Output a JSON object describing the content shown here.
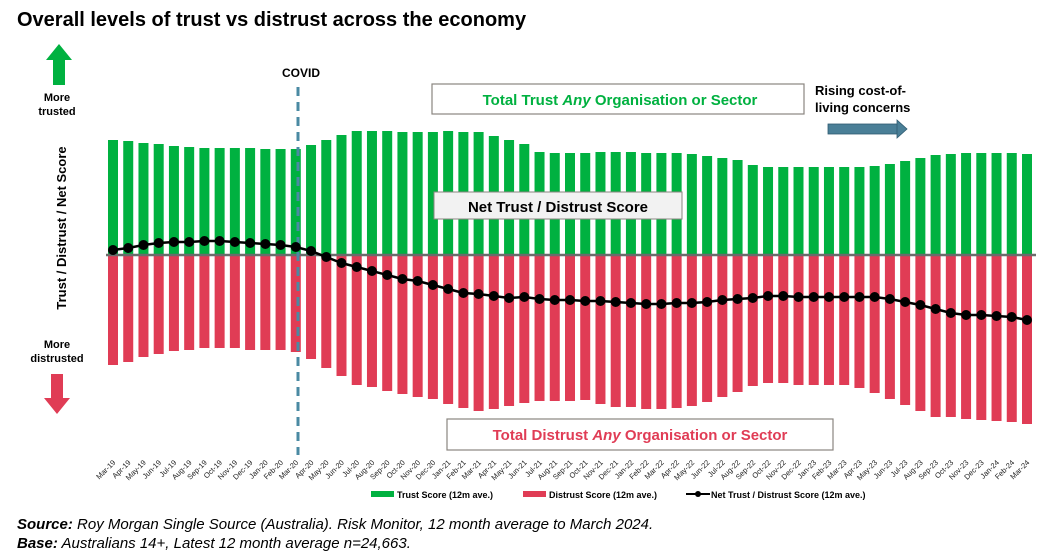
{
  "title": "Overall levels of trust vs distrust across the economy",
  "annotations": {
    "covid": "COVID",
    "more_trusted": [
      "More",
      "trusted"
    ],
    "more_distrusted": [
      "More",
      "distrusted"
    ],
    "trust_box": {
      "pre": "Total Trust ",
      "em": "Any",
      "post": " Organisation or Sector"
    },
    "distrust_box": {
      "pre": "Total Distrust ",
      "em": "Any",
      "post": " Organisation or Sector"
    },
    "net_box": "Net Trust / Distrust Score",
    "cost_of_living": [
      "Rising cost-of-",
      "living concerns"
    ]
  },
  "colors": {
    "trust": "#00b140",
    "distrust": "#e03c55",
    "net": "#000000",
    "covid_line": "#4a8aa3",
    "cost_arrow": "#4a7f97",
    "baseline": "#6b6b6b"
  },
  "footer": {
    "source_label": "Source:",
    "source_text": " Roy Morgan Single Source (Australia). Risk Monitor, 12 month average to March 2024.",
    "base_label": "Base:",
    "base_text": " Australians 14+, Latest 12 month average n=24,663."
  },
  "chart_data": {
    "type": "bar",
    "title": "Overall levels of trust vs distrust across the economy",
    "ylabel": "Trust / Distrust / Net Score",
    "xlabel": "",
    "ylim": [
      -90,
      65
    ],
    "grid": false,
    "legend_position": "bottom",
    "categories": [
      "Mar-19",
      "Apr-19",
      "May-19",
      "Jun-19",
      "Jul-19",
      "Aug-19",
      "Sep-19",
      "Oct-19",
      "Nov-19",
      "Dec-19",
      "Jan-20",
      "Feb-20",
      "Mar-20",
      "Apr-20",
      "May-20",
      "Jun-20",
      "Jul-20",
      "Aug-20",
      "Sep-20",
      "Oct-20",
      "Nov-20",
      "Dec-20",
      "Jan-21",
      "Feb-21",
      "Mar-21",
      "Apr-21",
      "May-21",
      "Jun-21",
      "Jul-21",
      "Aug-21",
      "Sep-21",
      "Oct-21",
      "Nov-21",
      "Dec-21",
      "Jan-22",
      "Feb-22",
      "Mar-22",
      "Apr-22",
      "May-22",
      "Jun-22",
      "Jul-22",
      "Aug-22",
      "Sep-22",
      "Oct-22",
      "Nov-22",
      "Dec-22",
      "Jan-23",
      "Feb-23",
      "Mar-23",
      "Apr-23",
      "May-23",
      "Jun-23",
      "Jul-23",
      "Aug-23",
      "Sep-23",
      "Oct-23",
      "Nov-23",
      "Dec-23",
      "Jan-24",
      "Feb-24",
      "Mar-24"
    ],
    "series": [
      {
        "name": "Trust Score (12m ave.)",
        "type": "bar",
        "values": [
          57.5,
          57,
          56,
          55.5,
          54.5,
          54,
          53.5,
          53.5,
          53.5,
          53.5,
          53,
          53,
          53,
          55,
          57.5,
          60,
          62,
          62,
          62,
          61.5,
          61.5,
          61.5,
          62,
          61.5,
          61.5,
          59.5,
          57.5,
          55.5,
          51.5,
          51,
          51,
          51,
          51.5,
          51.5,
          51.5,
          51,
          51,
          51,
          50.5,
          49.5,
          48.5,
          47.5,
          45,
          44,
          44,
          44,
          44,
          44,
          44,
          44,
          44.5,
          45.5,
          47,
          48.5,
          50,
          50.5,
          51,
          51,
          51,
          51,
          50.5
        ]
      },
      {
        "name": "Distrust Score (12m ave.)",
        "type": "bar",
        "values": [
          -55,
          -53.5,
          -51,
          -49.5,
          -48,
          -47.5,
          -46.5,
          -46.5,
          -46.5,
          -47.5,
          -47.5,
          -47.5,
          -48.5,
          -52,
          -56.5,
          -60.5,
          -65,
          -66,
          -68,
          -69.5,
          -71,
          -72,
          -74.5,
          -76.5,
          -78,
          -77,
          -75.5,
          -74,
          -73,
          -73,
          -73,
          -72.5,
          -74.5,
          -76,
          -76,
          -77,
          -77,
          -76.5,
          -75.5,
          -73.5,
          -71,
          -68.5,
          -65.5,
          -64,
          -64,
          -65,
          -65,
          -65,
          -65,
          -66.5,
          -69,
          -72,
          -75,
          -78,
          -81,
          -81,
          -82,
          -82.5,
          -83,
          -83.5,
          -84.5
        ]
      },
      {
        "name": "Net Trust / Distrust Score (12m ave.)",
        "type": "line",
        "values": [
          2.5,
          3.5,
          5,
          6,
          6.5,
          6.5,
          7,
          7,
          6.5,
          6,
          5.5,
          5,
          4,
          2,
          -1,
          -4,
          -6,
          -8,
          -10,
          -12,
          -13,
          -15,
          -17,
          -19,
          -19.5,
          -20.5,
          -21.5,
          -21,
          -22,
          -22.5,
          -22.5,
          -23,
          -23,
          -23.5,
          -24,
          -24.5,
          -24.5,
          -24,
          -24,
          -23.5,
          -22.5,
          -22,
          -21.5,
          -20.5,
          -20.5,
          -21,
          -21,
          -21,
          -21,
          -21,
          -21,
          -22,
          -23.5,
          -25,
          -27,
          -29,
          -30,
          -30,
          -30.5,
          -31,
          -32.5
        ]
      }
    ]
  }
}
